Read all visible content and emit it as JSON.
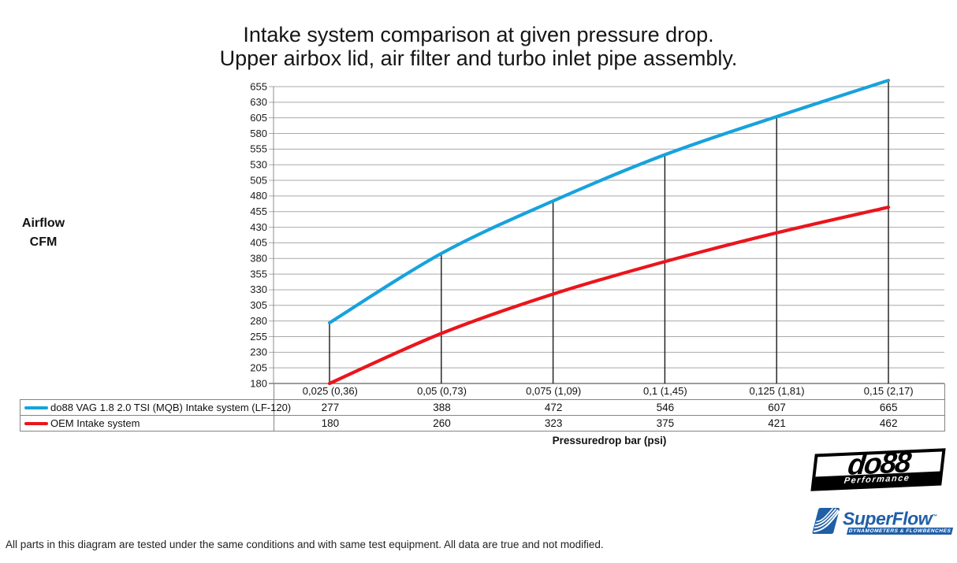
{
  "title": {
    "line1": "Intake system comparison at given pressure drop.",
    "line2": "Upper airbox lid, air filter and turbo inlet pipe assembly."
  },
  "y_axis": {
    "label_line1": "Airflow",
    "label_line2": "CFM"
  },
  "x_axis": {
    "label": "Pressuredrop bar (psi)"
  },
  "chart_data": {
    "type": "line",
    "title": "Intake system comparison at given pressure drop. Upper airbox lid, air filter and turbo inlet pipe assembly.",
    "xlabel": "Pressuredrop bar (psi)",
    "ylabel": "Airflow CFM",
    "categories": [
      "0,025 (0,36)",
      "0,05 (0,73)",
      "0,075 (1,09)",
      "0,1 (1,45)",
      "0,125 (1,81)",
      "0,15 (2,17)"
    ],
    "series": [
      {
        "name": "do88 VAG 1.8 2.0 TSI (MQB) Intake system (LF-120)",
        "color": "#18A2DC",
        "values": [
          277,
          388,
          472,
          546,
          607,
          665
        ]
      },
      {
        "name": "OEM Intake system",
        "color": "#EA151C",
        "values": [
          180,
          260,
          323,
          375,
          421,
          462
        ]
      }
    ],
    "ylim": [
      180,
      655
    ],
    "y_tick_step": 25,
    "y_ticks": [
      180,
      205,
      230,
      255,
      280,
      305,
      330,
      355,
      380,
      405,
      430,
      455,
      480,
      505,
      530,
      555,
      580,
      605,
      630,
      655
    ],
    "grid": true,
    "gridline_color": "#A9A9A9",
    "axis_color": "#3A3A3A",
    "drop_line_color": "#1A1A1A",
    "legend_position": "bottom table with per-category values",
    "drop_lines": "vertical lines from x-axis up to do88 series at each category"
  },
  "footer": {
    "text": "All parts in this diagram are tested under the same conditions and with same test equipment. All data are true and not modified."
  },
  "logos": {
    "do88": {
      "name": "do88",
      "subtext": "Performance"
    },
    "superflow": {
      "name": "SuperFlow",
      "trademark": "™",
      "subtext": "DYNAMOMETERS & FLOWBENCHES",
      "color": "#1F5FA7"
    }
  }
}
